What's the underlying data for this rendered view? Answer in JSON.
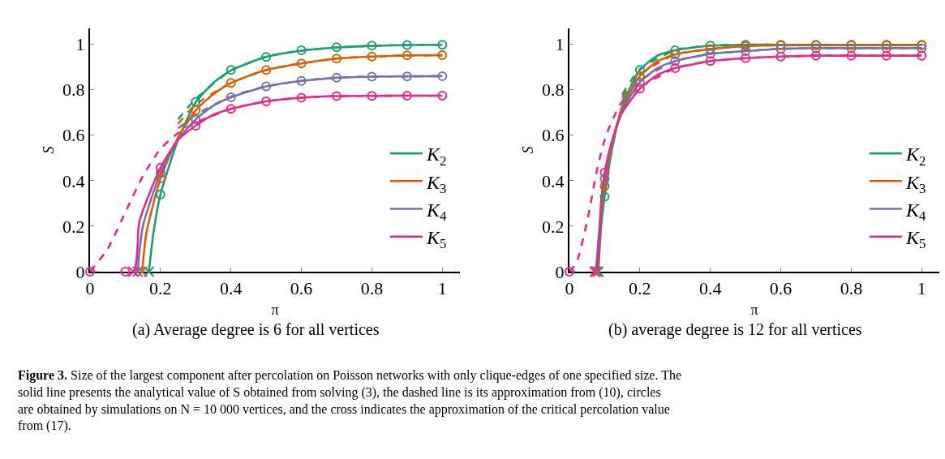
{
  "chart_data": [
    {
      "type": "line",
      "xlabel": "π",
      "ylabel": "S",
      "xlim": [
        0,
        1.05
      ],
      "ylim": [
        0,
        1.07
      ],
      "xticks": [
        0,
        0.2,
        0.4,
        0.6,
        0.8,
        1
      ],
      "yticks": [
        0,
        0.2,
        0.4,
        0.6,
        0.8,
        1
      ],
      "legend": "bottom right",
      "annotations": [
        "(a) Average degree is 6 for all vertices",
        "Figure 3. Size of the largest component after percolation on Poisson networks with only clique-edges of one specified size. The solid line presents the analytical value of S obtained from solving (3), the dashed line is its approximation from (10), circles are obtained by simulations on N = 10 000 vertices, and the cross indicates the approximation of the critical percolation value from (17)."
      ],
      "series": [
        {
          "type": "line",
          "line_style": "dashed",
          "marker": "none",
          "color": "#1b9e77",
          "x": [
            0.25,
            0.3,
            0.4,
            0.5,
            0.6,
            0.7,
            0.8,
            0.9,
            1
          ],
          "values": [
            0.67,
            0.76,
            0.885,
            0.945,
            0.972,
            0.986,
            0.993,
            0.997,
            0.998
          ]
        },
        {
          "type": "line",
          "line_style": "dashed",
          "marker": "none",
          "color": "#d95f02",
          "x": [
            0.25,
            0.3,
            0.4,
            0.5,
            0.6,
            0.7,
            0.8,
            0.9,
            1
          ],
          "values": [
            0.65,
            0.735,
            0.83,
            0.887,
            0.916,
            0.937,
            0.946,
            0.951,
            0.952
          ]
        },
        {
          "type": "line",
          "line_style": "dashed",
          "marker": "none",
          "color": "#7570b3",
          "x": [
            0.25,
            0.3,
            0.4,
            0.5,
            0.6,
            0.7,
            0.8,
            0.9,
            1
          ],
          "values": [
            0.63,
            0.69,
            0.77,
            0.815,
            0.839,
            0.853,
            0.858,
            0.859,
            0.86
          ]
        },
        {
          "type": "line",
          "line_style": "dashed",
          "marker": "none",
          "color": "#e7298a",
          "x": [
            0,
            0.05,
            0.1,
            0.15,
            0.2,
            0.25,
            0.3,
            0.4,
            0.5,
            0.6,
            0.7,
            0.8,
            0.9,
            1
          ],
          "values": [
            0,
            0.1,
            0.26,
            0.42,
            0.54,
            0.61,
            0.655,
            0.716,
            0.749,
            0.765,
            0.772,
            0.773,
            0.774,
            0.774
          ]
        },
        {
          "line_style": "solid",
          "marker": "none",
          "name": "K$_{2}$",
          "color": "#1b9e77",
          "x": [
            0.167,
            0.18,
            0.2,
            0.25,
            0.3,
            0.35,
            0.4,
            0.5,
            0.6,
            0.7,
            0.8,
            0.9,
            1
          ],
          "values": [
            0,
            0.17,
            0.34,
            0.58,
            0.745,
            0.83,
            0.885,
            0.945,
            0.972,
            0.986,
            0.993,
            0.997,
            0.998
          ]
        },
        {
          "line_style": "solid",
          "marker": "none",
          "name": "K$_{3}$",
          "color": "#d95f02",
          "x": [
            0.148,
            0.16,
            0.2,
            0.25,
            0.3,
            0.35,
            0.4,
            0.5,
            0.6,
            0.7,
            0.8,
            0.9,
            1
          ],
          "values": [
            0,
            0.17,
            0.41,
            0.59,
            0.71,
            0.78,
            0.83,
            0.887,
            0.916,
            0.937,
            0.946,
            0.951,
            0.952
          ]
        },
        {
          "line_style": "solid",
          "marker": "none",
          "name": "K$_{4}$",
          "color": "#7570b3",
          "x": [
            0.135,
            0.15,
            0.2,
            0.25,
            0.3,
            0.35,
            0.4,
            0.5,
            0.6,
            0.7,
            0.8,
            0.9,
            1
          ],
          "values": [
            0,
            0.2,
            0.433,
            0.58,
            0.67,
            0.73,
            0.767,
            0.815,
            0.839,
            0.853,
            0.858,
            0.859,
            0.86
          ]
        },
        {
          "line_style": "solid",
          "marker": "none",
          "name": "K$_{5}$",
          "color": "#e7298a",
          "x": [
            0,
            0.123,
            0.14,
            0.2,
            0.25,
            0.3,
            0.35,
            0.4,
            0.5,
            0.6,
            0.7,
            0.8,
            0.9,
            1
          ],
          "values": [
            0,
            0,
            0.22,
            0.457,
            0.58,
            0.642,
            0.69,
            0.716,
            0.749,
            0.765,
            0.772,
            0.773,
            0.774,
            0.774
          ]
        },
        {
          "type": "scatter",
          "marker": "circle",
          "color": "#1b9e77",
          "x": [
            0.2,
            0.3,
            0.4,
            0.5,
            0.6,
            0.7,
            0.8,
            0.9,
            1
          ],
          "values": [
            0.34,
            0.747,
            0.887,
            0.944,
            0.974,
            0.987,
            0.994,
            0.997,
            0.998
          ]
        },
        {
          "type": "scatter",
          "marker": "circle",
          "color": "#d95f02",
          "x": [
            0.2,
            0.3,
            0.4,
            0.5,
            0.6,
            0.7,
            0.8,
            0.9,
            1
          ],
          "values": [
            0.41,
            0.71,
            0.83,
            0.887,
            0.916,
            0.937,
            0.946,
            0.951,
            0.952
          ]
        },
        {
          "type": "scatter",
          "marker": "circle",
          "color": "#7570b3",
          "x": [
            0.2,
            0.3,
            0.4,
            0.5,
            0.6,
            0.7,
            0.8,
            0.9,
            1
          ],
          "values": [
            0.433,
            0.67,
            0.767,
            0.815,
            0.839,
            0.853,
            0.858,
            0.859,
            0.86
          ]
        },
        {
          "type": "scatter",
          "marker": "circle",
          "color": "#e7298a",
          "x": [
            0,
            0.1,
            0.2,
            0.3,
            0.4,
            0.5,
            0.6,
            0.7,
            0.8,
            0.9,
            1
          ],
          "values": [
            0,
            0,
            0.457,
            0.642,
            0.716,
            0.749,
            0.765,
            0.772,
            0.773,
            0.774,
            0.774
          ]
        },
        {
          "type": "scatter",
          "marker": "cross",
          "color": "#1b9e77",
          "x": [
            0.167
          ],
          "values": [
            0
          ]
        },
        {
          "type": "scatter",
          "marker": "cross",
          "color": "#d95f02",
          "x": [
            0.148
          ],
          "values": [
            0
          ]
        },
        {
          "type": "scatter",
          "marker": "cross",
          "color": "#7570b3",
          "x": [
            0.135
          ],
          "values": [
            0
          ]
        },
        {
          "type": "scatter",
          "marker": "cross",
          "color": "#e7298a",
          "x": [
            0.123
          ],
          "values": [
            0
          ]
        }
      ]
    },
    {
      "type": "line",
      "xlabel": "π",
      "ylabel": "S",
      "xlim": [
        0,
        1.05
      ],
      "ylim": [
        0,
        1.07
      ],
      "xticks": [
        0,
        0.2,
        0.4,
        0.6,
        0.8,
        1
      ],
      "yticks": [
        0,
        0.2,
        0.4,
        0.6,
        0.8,
        1
      ],
      "legend": "bottom right",
      "annotations": [
        "(b) average degree is 12 for all vertices"
      ],
      "series": [
        {
          "type": "line",
          "line_style": "dashed",
          "marker": "none",
          "color": "#1b9e77",
          "x": [
            0.15,
            0.2,
            0.3,
            0.4,
            0.5,
            0.6,
            0.7,
            0.8,
            0.9,
            1
          ],
          "values": [
            0.78,
            0.89,
            0.974,
            0.994,
            0.998,
            0.998,
            0.998,
            0.998,
            0.998,
            0.998
          ]
        },
        {
          "type": "line",
          "line_style": "dashed",
          "marker": "none",
          "color": "#d95f02",
          "x": [
            0.15,
            0.2,
            0.3,
            0.4,
            0.5,
            0.6,
            0.7,
            0.8,
            0.9,
            1
          ],
          "values": [
            0.77,
            0.865,
            0.955,
            0.979,
            0.992,
            0.996,
            0.996,
            0.996,
            0.996,
            0.996
          ]
        },
        {
          "type": "line",
          "line_style": "dashed",
          "marker": "none",
          "color": "#7570b3",
          "x": [
            0.15,
            0.2,
            0.3,
            0.4,
            0.5,
            0.6,
            0.7,
            0.8,
            0.9,
            1
          ],
          "values": [
            0.76,
            0.84,
            0.926,
            0.958,
            0.97,
            0.98,
            0.983,
            0.983,
            0.983,
            0.983
          ]
        },
        {
          "type": "line",
          "line_style": "dashed",
          "marker": "none",
          "color": "#e7298a",
          "x": [
            0,
            0.02,
            0.05,
            0.08,
            0.1,
            0.12,
            0.15,
            0.2,
            0.3,
            0.4,
            0.5,
            0.6,
            0.7,
            0.8,
            0.9,
            1
          ],
          "values": [
            0,
            0.04,
            0.22,
            0.46,
            0.58,
            0.66,
            0.75,
            0.81,
            0.895,
            0.926,
            0.939,
            0.946,
            0.95,
            0.95,
            0.95,
            0.95
          ]
        },
        {
          "line_style": "solid",
          "marker": "none",
          "name": "K$_{2}$",
          "color": "#1b9e77",
          "x": [
            0.082,
            0.09,
            0.1,
            0.12,
            0.15,
            0.2,
            0.25,
            0.3,
            0.4,
            0.5,
            0.6,
            0.7,
            0.8,
            0.9,
            1
          ],
          "values": [
            0,
            0.2,
            0.33,
            0.53,
            0.73,
            0.887,
            0.95,
            0.974,
            0.994,
            0.998,
            0.998,
            0.998,
            0.998,
            0.998,
            0.998
          ]
        },
        {
          "line_style": "solid",
          "marker": "none",
          "name": "K$_{3}$",
          "color": "#d95f02",
          "x": [
            0.078,
            0.09,
            0.1,
            0.12,
            0.15,
            0.2,
            0.25,
            0.3,
            0.4,
            0.5,
            0.6,
            0.7,
            0.8,
            0.9,
            1
          ],
          "values": [
            0,
            0.25,
            0.376,
            0.55,
            0.72,
            0.86,
            0.925,
            0.955,
            0.979,
            0.992,
            0.996,
            0.996,
            0.996,
            0.996,
            0.996
          ]
        },
        {
          "line_style": "solid",
          "marker": "none",
          "name": "K$_{4}$",
          "color": "#7570b3",
          "x": [
            0.075,
            0.09,
            0.1,
            0.12,
            0.15,
            0.2,
            0.25,
            0.3,
            0.4,
            0.5,
            0.6,
            0.7,
            0.8,
            0.9,
            1
          ],
          "values": [
            0,
            0.28,
            0.408,
            0.56,
            0.71,
            0.833,
            0.895,
            0.926,
            0.958,
            0.97,
            0.98,
            0.983,
            0.983,
            0.983,
            0.983
          ]
        },
        {
          "line_style": "solid",
          "marker": "none",
          "name": "K$_{5}$",
          "color": "#e7298a",
          "x": [
            0,
            0.072,
            0.09,
            0.1,
            0.12,
            0.15,
            0.2,
            0.25,
            0.3,
            0.4,
            0.5,
            0.6,
            0.7,
            0.8,
            0.9,
            1
          ],
          "values": [
            0,
            0,
            0.31,
            0.436,
            0.57,
            0.7,
            0.805,
            0.865,
            0.895,
            0.926,
            0.939,
            0.946,
            0.95,
            0.95,
            0.95,
            0.95
          ]
        },
        {
          "type": "scatter",
          "marker": "circle",
          "color": "#1b9e77",
          "x": [
            0.1,
            0.2,
            0.3,
            0.4,
            0.5,
            0.6,
            0.7,
            0.8,
            0.9,
            1
          ],
          "values": [
            0.33,
            0.887,
            0.974,
            0.994,
            0.998,
            0.998,
            0.998,
            0.998,
            0.998,
            0.998
          ]
        },
        {
          "type": "scatter",
          "marker": "circle",
          "color": "#d95f02",
          "x": [
            0.1,
            0.2,
            0.3,
            0.4,
            0.5,
            0.6,
            0.7,
            0.8,
            0.9,
            1
          ],
          "values": [
            0.376,
            0.86,
            0.955,
            0.979,
            0.992,
            0.996,
            0.996,
            0.996,
            0.996,
            0.996
          ]
        },
        {
          "type": "scatter",
          "marker": "circle",
          "color": "#7570b3",
          "x": [
            0.1,
            0.2,
            0.3,
            0.4,
            0.5,
            0.6,
            0.7,
            0.8,
            0.9,
            1
          ],
          "values": [
            0.408,
            0.833,
            0.926,
            0.958,
            0.97,
            0.98,
            0.983,
            0.983,
            0.983,
            0.983
          ]
        },
        {
          "type": "scatter",
          "marker": "circle",
          "color": "#e7298a",
          "x": [
            0,
            0.1,
            0.2,
            0.3,
            0.4,
            0.5,
            0.6,
            0.7,
            0.8,
            0.9,
            1
          ],
          "values": [
            0,
            0.436,
            0.805,
            0.895,
            0.926,
            0.939,
            0.946,
            0.95,
            0.95,
            0.95,
            0.95
          ]
        },
        {
          "type": "scatter",
          "marker": "cross",
          "color": "#1b9e77",
          "x": [
            0.082
          ],
          "values": [
            0
          ]
        },
        {
          "type": "scatter",
          "marker": "cross",
          "color": "#d95f02",
          "x": [
            0.078
          ],
          "values": [
            0
          ]
        },
        {
          "type": "scatter",
          "marker": "cross",
          "color": "#7570b3",
          "x": [
            0.075
          ],
          "values": [
            0
          ]
        },
        {
          "type": "scatter",
          "marker": "cross",
          "color": "#e7298a",
          "x": [
            0.072
          ],
          "values": [
            0
          ]
        }
      ]
    }
  ]
}
